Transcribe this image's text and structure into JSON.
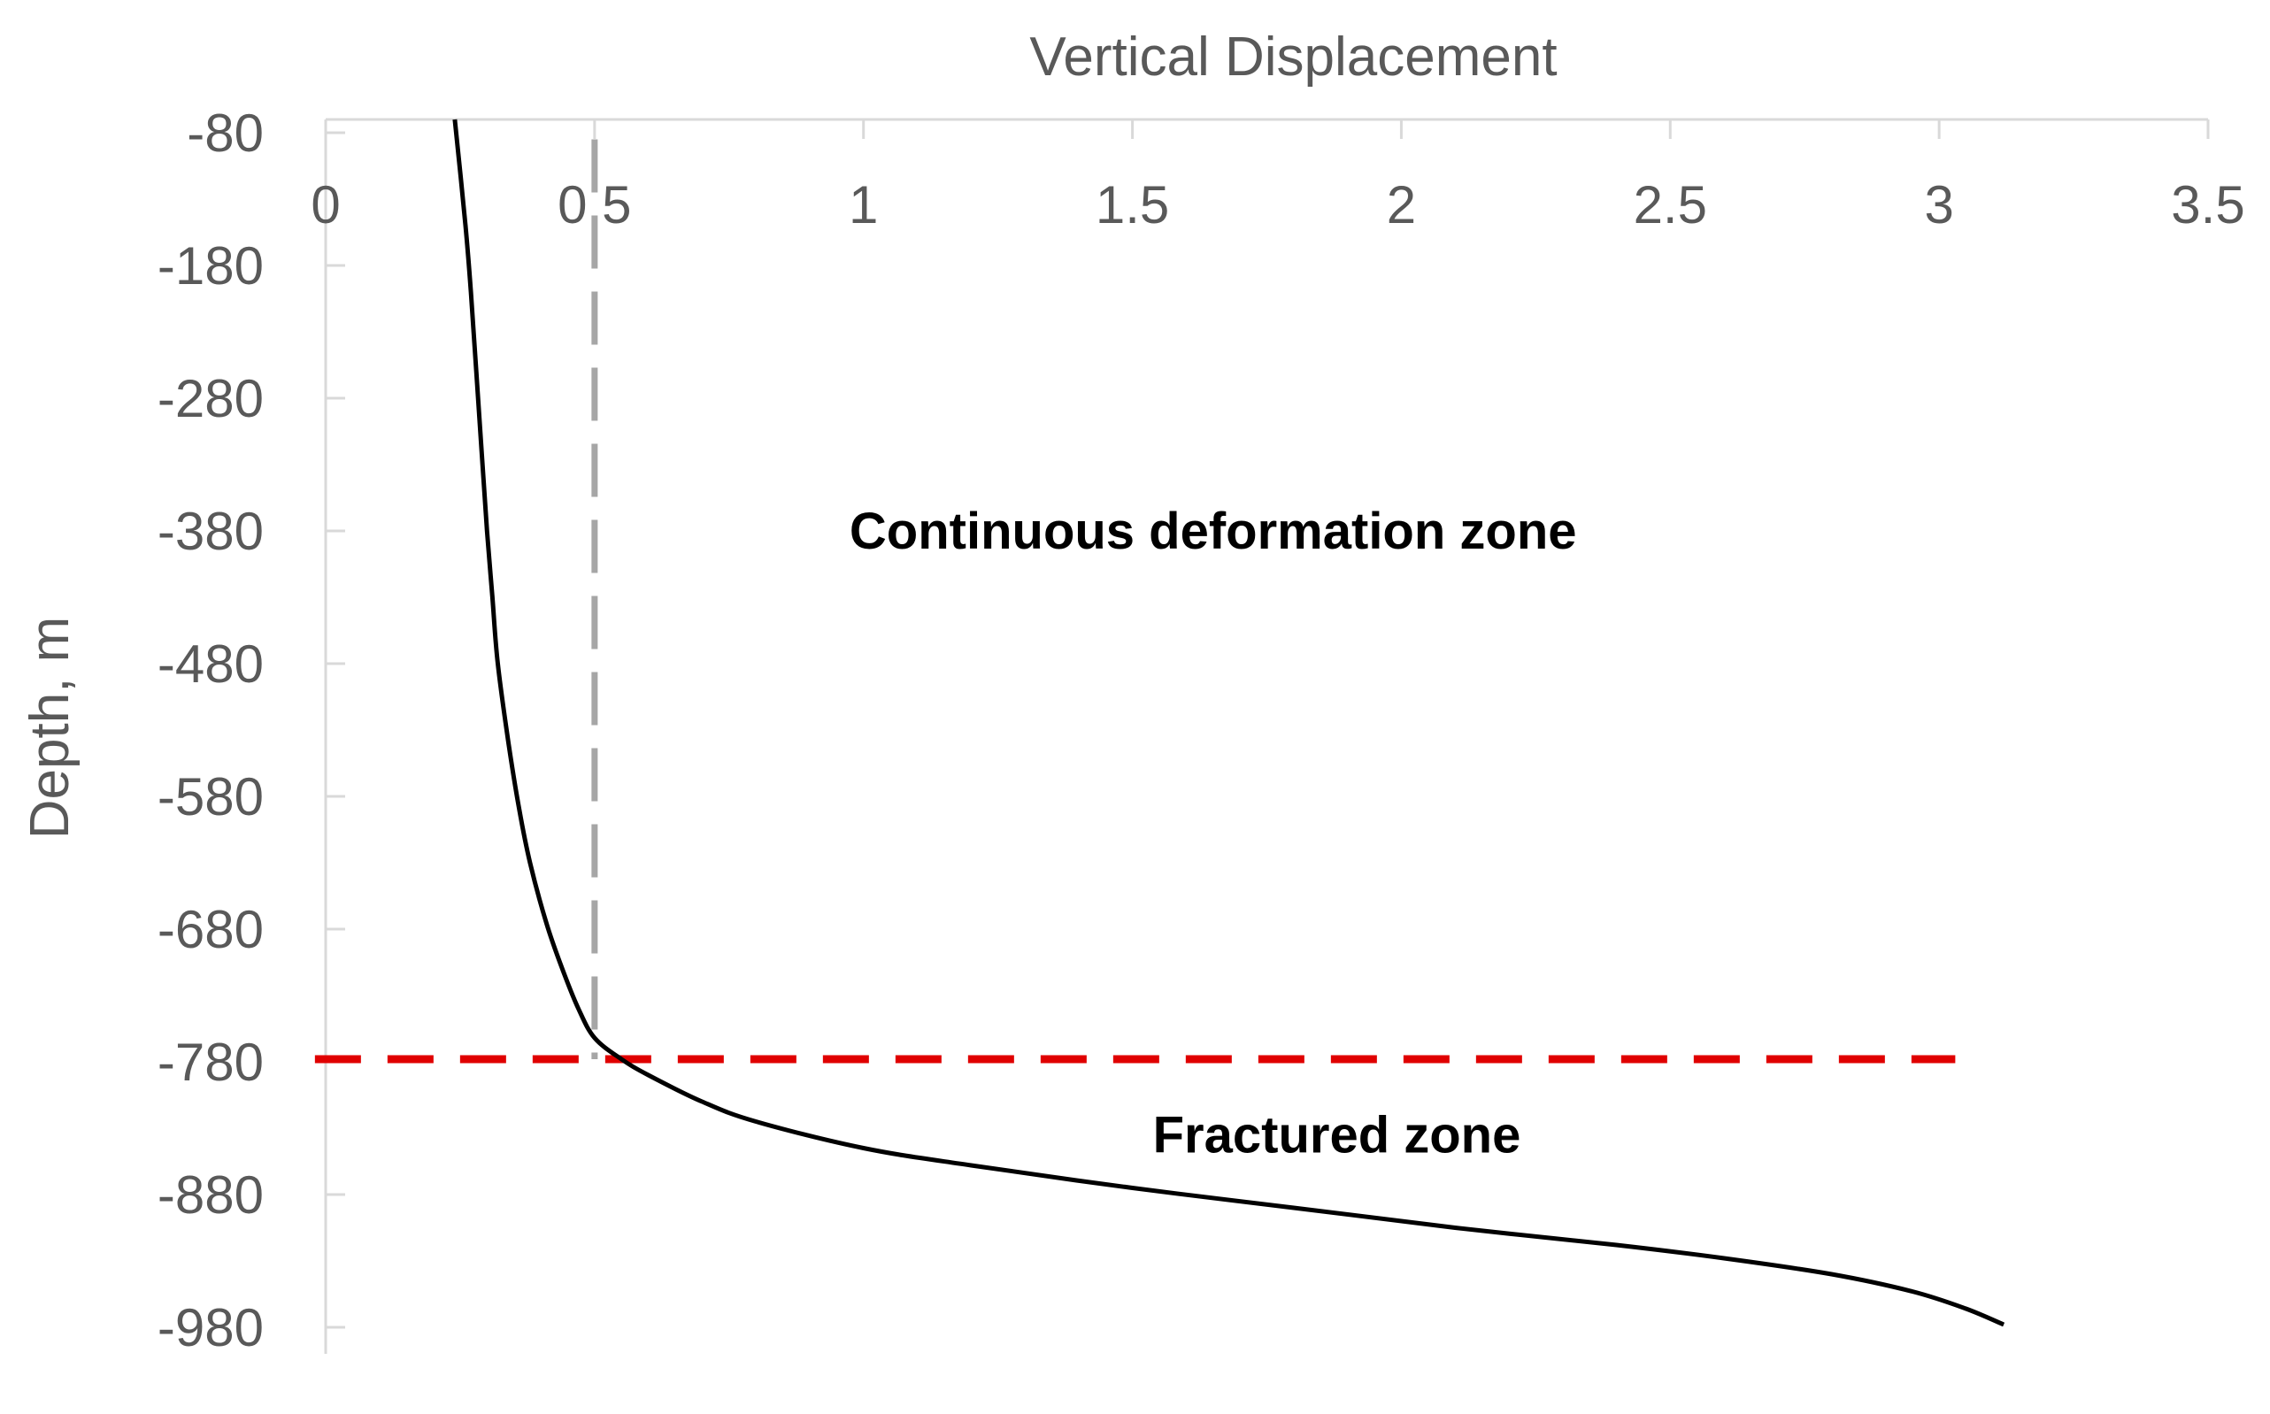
{
  "chart_data": {
    "type": "line",
    "xlabel": "Vertical Displacement",
    "ylabel": "Depth, m",
    "x_axis_position": "top",
    "xlim": [
      0,
      3.5
    ],
    "ylim": [
      -1000,
      -70
    ],
    "x_ticks": [
      "0",
      "0.5",
      "1",
      "1.5",
      "2",
      "2.5",
      "3",
      "3.5"
    ],
    "y_ticks": [
      "-80",
      "-180",
      "-280",
      "-380",
      "-480",
      "-580",
      "-680",
      "-780",
      "-880",
      "-980"
    ],
    "grid": false,
    "legend": "none",
    "series": [
      {
        "color": "#000000",
        "x": [
          0.24,
          0.26,
          0.27,
          0.28,
          0.29,
          0.3,
          0.31,
          0.32,
          0.34,
          0.36,
          0.38,
          0.41,
          0.44,
          0.47,
          0.5,
          0.55,
          0.6,
          0.7,
          0.8,
          1.0,
          1.2,
          1.5,
          1.8,
          2.1,
          2.4,
          2.6,
          2.8,
          2.95,
          3.05,
          3.12
        ],
        "y": [
          -70,
          -150,
          -200,
          -260,
          -320,
          -380,
          -430,
          -480,
          -540,
          -590,
          -630,
          -675,
          -710,
          -740,
          -762,
          -778,
          -790,
          -810,
          -825,
          -845,
          -858,
          -875,
          -890,
          -905,
          -918,
          -928,
          -940,
          -953,
          -966,
          -978
        ]
      }
    ],
    "reference_lines": [
      {
        "orientation": "horizontal",
        "y": -778,
        "x_from": -0.02,
        "x_to": 3.03,
        "color": "#e00000",
        "style": "dashed"
      },
      {
        "orientation": "vertical",
        "x": 0.5,
        "y_from": -85,
        "y_to": -778,
        "color": "#a6a6a6",
        "style": "dashed"
      }
    ],
    "annotations": [
      {
        "text": "Continuous deformation zone",
        "x": 1.65,
        "y": -380
      },
      {
        "text": "Fractured zone",
        "x": 1.88,
        "y": -835
      }
    ]
  }
}
